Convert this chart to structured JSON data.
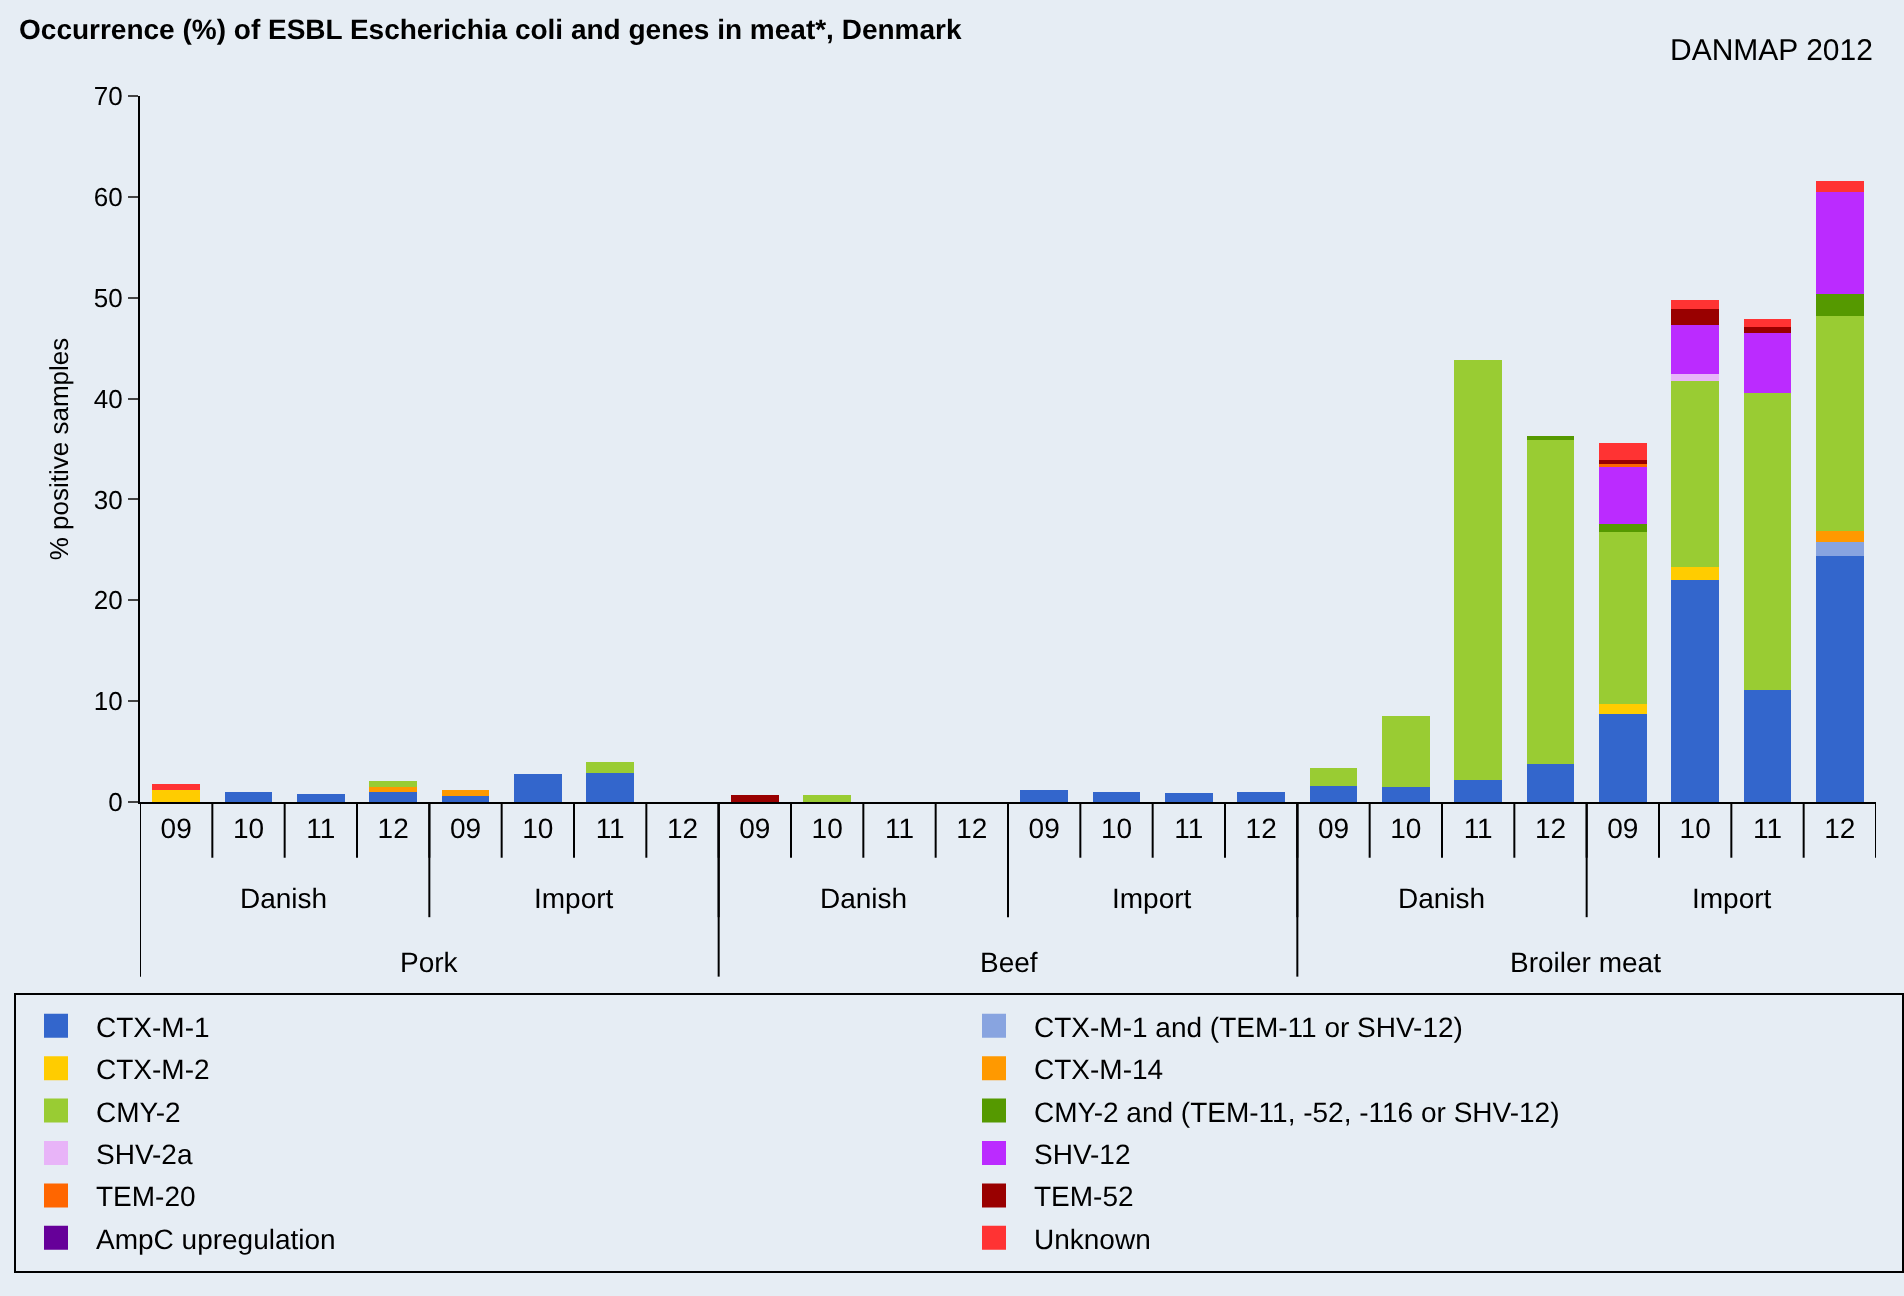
{
  "chart_data": {
    "type": "bar",
    "stacked": true,
    "title": "Occurrence (%) of ESBL Escherichia coli and genes in meat*, Denmark",
    "ylabel": "% positive samples",
    "categories": [
      "09",
      "10",
      "11",
      "12",
      "09",
      "10",
      "11",
      "12",
      "09",
      "10",
      "11",
      "12",
      "09",
      "10",
      "11",
      "12",
      "09",
      "10",
      "11",
      "12",
      "09",
      "10",
      "11",
      "12"
    ],
    "annotations": [
      "DANMAP 2012",
      "Danish",
      "Import",
      "Danish",
      "Import",
      "Danish",
      "Import",
      "Pork",
      "Beef",
      "Broiler meat"
    ],
    "ylim": [
      0,
      70
    ],
    "yticks": [
      0,
      10,
      20,
      30,
      40,
      50,
      60,
      70
    ],
    "grid": false,
    "legend": "bottom",
    "series": [
      {
        "name": "CTX-M-1",
        "color": "#3366cc",
        "values": [
          0,
          1.0,
          0.8,
          1.0,
          0.6,
          2.8,
          2.9,
          0,
          0,
          0,
          0,
          0,
          1.2,
          1.0,
          0.9,
          1.0,
          1.6,
          1.5,
          2.2,
          3.8,
          8.7,
          22.0,
          11.1,
          24.4
        ]
      },
      {
        "name": "CTX-M-1 and (TEM-11 or SHV-12)",
        "color": "#88a4e0",
        "values": [
          0,
          0,
          0,
          0,
          0,
          0,
          0,
          0,
          0,
          0,
          0,
          0,
          0,
          0,
          0,
          0,
          0,
          0,
          0,
          0,
          0,
          0,
          0,
          1.4
        ]
      },
      {
        "name": "CTX-M-2",
        "color": "#ffcc00",
        "values": [
          1.2,
          0,
          0,
          0,
          0,
          0,
          0,
          0,
          0,
          0,
          0,
          0,
          0,
          0,
          0,
          0,
          0,
          0,
          0,
          0,
          1.0,
          1.3,
          0,
          0
        ]
      },
      {
        "name": "CTX-M-14",
        "color": "#ff9900",
        "values": [
          0,
          0,
          0,
          0.5,
          0.6,
          0,
          0,
          0,
          0,
          0,
          0,
          0,
          0,
          0,
          0,
          0,
          0,
          0,
          0,
          0,
          0,
          0,
          0,
          1.1
        ]
      },
      {
        "name": "CMY-2",
        "color": "#99cc33",
        "values": [
          0,
          0,
          0,
          0.6,
          0,
          0,
          1.1,
          0,
          0,
          0.7,
          0,
          0,
          0,
          0,
          0,
          0,
          1.8,
          7.0,
          41.6,
          32.1,
          17.1,
          18.4,
          29.5,
          21.3
        ]
      },
      {
        "name": "CMY-2 and (TEM-11, -52, -116 or SHV-12)",
        "color": "#559900",
        "values": [
          0,
          0,
          0,
          0,
          0,
          0,
          0,
          0,
          0,
          0,
          0,
          0,
          0,
          0,
          0,
          0,
          0,
          0,
          0,
          0.4,
          0.8,
          0,
          0,
          2.2
        ]
      },
      {
        "name": "SHV-2a",
        "color": "#e8b4f8",
        "values": [
          0,
          0,
          0,
          0,
          0,
          0,
          0,
          0,
          0,
          0,
          0,
          0,
          0,
          0,
          0,
          0,
          0,
          0,
          0,
          0,
          0,
          0.7,
          0,
          0
        ]
      },
      {
        "name": "SHV-12",
        "color": "#bb2bff",
        "values": [
          0,
          0,
          0,
          0,
          0,
          0,
          0,
          0,
          0,
          0,
          0,
          0,
          0,
          0,
          0,
          0,
          0,
          0,
          0,
          0,
          5.6,
          4.9,
          5.9,
          10.1
        ]
      },
      {
        "name": "TEM-20",
        "color": "#ff6600",
        "values": [
          0,
          0,
          0,
          0,
          0,
          0,
          0,
          0,
          0,
          0,
          0,
          0,
          0,
          0,
          0,
          0,
          0,
          0,
          0,
          0,
          0.5,
          0,
          0,
          0
        ]
      },
      {
        "name": "TEM-52",
        "color": "#990000",
        "values": [
          0,
          0,
          0,
          0,
          0,
          0,
          0,
          0,
          0.7,
          0,
          0,
          0,
          0,
          0,
          0,
          0,
          0,
          0,
          0,
          0,
          0.2,
          1.6,
          0.6,
          0
        ]
      },
      {
        "name": "AmpC upregulation",
        "color": "#660099",
        "values": [
          0,
          0,
          0,
          0,
          0,
          0,
          0,
          0,
          0,
          0,
          0,
          0,
          0,
          0,
          0,
          0,
          0,
          0,
          0,
          0,
          0,
          0,
          0,
          0
        ]
      },
      {
        "name": "Unknown",
        "color": "#ff3333",
        "values": [
          0.6,
          0,
          0,
          0,
          0,
          0,
          0,
          0,
          0,
          0,
          0,
          0,
          0,
          0,
          0,
          0,
          0,
          0,
          0,
          0,
          1.7,
          0.9,
          0.8,
          1.1
        ]
      }
    ]
  }
}
